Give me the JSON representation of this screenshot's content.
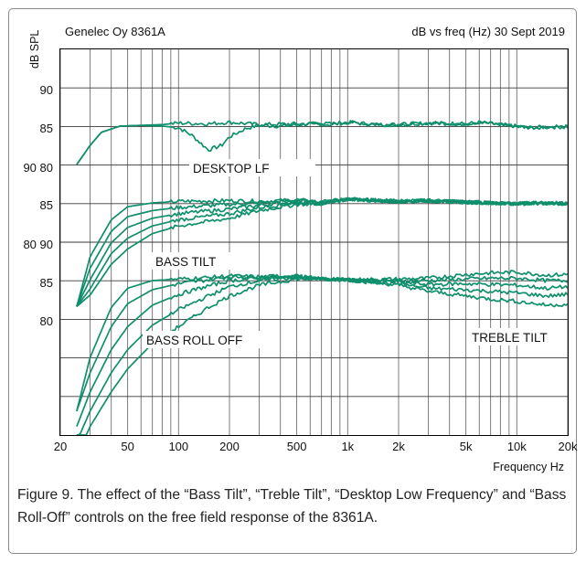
{
  "chart_data": {
    "type": "line",
    "header_left": "Genelec Oy 8361A",
    "header_right": "dB vs freq (Hz) 30 Sept 2019",
    "ylabel": "dB SPL",
    "xlabel": "Frequency Hz",
    "x_scale": "log",
    "xlim": [
      20,
      20000
    ],
    "x_ticks": [
      20,
      50,
      100,
      200,
      500,
      1000,
      2000,
      5000,
      10000,
      20000
    ],
    "x_tick_labels": [
      "20",
      "50",
      "100",
      "200",
      "500",
      "1k",
      "2k",
      "5k",
      "10k",
      "20k"
    ],
    "y_tick_labels": [
      "90",
      "85",
      "90 80",
      "85",
      "80 90",
      "85",
      "80"
    ],
    "annotations": [
      "DESKTOP LF",
      "BASS TILT",
      "BASS ROLL OFF",
      "TREBLE TILT"
    ],
    "line_color": "#0f8f6c",
    "grid": true,
    "groups": [
      {
        "label": "DESKTOP LF",
        "reference_db": 85,
        "curves": [
          {
            "points": [
              [
                25,
                80.0
              ],
              [
                30,
                82.5
              ],
              [
                35,
                84.2
              ],
              [
                45,
                85.0
              ],
              [
                60,
                85.1
              ],
              [
                80,
                85.0
              ],
              [
                100,
                84.8
              ],
              [
                120,
                83.8
              ],
              [
                150,
                81.9
              ],
              [
                180,
                82.5
              ],
              [
                200,
                83.6
              ],
              [
                250,
                84.7
              ],
              [
                300,
                85.1
              ],
              [
                400,
                85.0
              ],
              [
                600,
                85.3
              ],
              [
                800,
                85.2
              ],
              [
                1000,
                85.5
              ],
              [
                1500,
                85.2
              ],
              [
                2000,
                85.2
              ],
              [
                3000,
                85.4
              ],
              [
                5000,
                85.3
              ],
              [
                6000,
                85.5
              ],
              [
                8000,
                85.2
              ],
              [
                12000,
                84.8
              ],
              [
                15000,
                84.9
              ],
              [
                20000,
                84.9
              ]
            ]
          },
          {
            "points": [
              [
                25,
                80.0
              ],
              [
                30,
                82.5
              ],
              [
                35,
                84.2
              ],
              [
                45,
                85.0
              ],
              [
                60,
                85.1
              ],
              [
                80,
                85.2
              ],
              [
                100,
                85.4
              ],
              [
                150,
                85.3
              ],
              [
                200,
                85.5
              ],
              [
                300,
                85.2
              ],
              [
                500,
                85.3
              ],
              [
                800,
                85.3
              ],
              [
                1000,
                85.5
              ],
              [
                1500,
                85.2
              ],
              [
                2000,
                85.2
              ],
              [
                3000,
                85.4
              ],
              [
                5000,
                85.3
              ],
              [
                6000,
                85.5
              ],
              [
                8000,
                85.2
              ],
              [
                12000,
                84.8
              ],
              [
                15000,
                84.9
              ],
              [
                20000,
                84.9
              ]
            ]
          }
        ]
      },
      {
        "label": "BASS TILT",
        "reference_db": 85,
        "curves": [
          {
            "points": [
              [
                25,
                71.5
              ],
              [
                30,
                78.0
              ],
              [
                40,
                82.8
              ],
              [
                50,
                84.5
              ],
              [
                70,
                85.0
              ],
              [
                100,
                85.2
              ],
              [
                200,
                85.3
              ],
              [
                300,
                85.2
              ],
              [
                500,
                85.4
              ],
              [
                700,
                85.1
              ],
              [
                1000,
                85.5
              ],
              [
                2000,
                85.2
              ],
              [
                3000,
                85.3
              ],
              [
                5000,
                85.1
              ],
              [
                10000,
                84.9
              ],
              [
                15000,
                85.0
              ],
              [
                20000,
                84.9
              ]
            ]
          },
          {
            "points": [
              [
                25,
                71.5
              ],
              [
                30,
                76.5
              ],
              [
                40,
                81.3
              ],
              [
                50,
                83.2
              ],
              [
                70,
                84.0
              ],
              [
                100,
                84.4
              ],
              [
                200,
                84.8
              ],
              [
                300,
                85.0
              ],
              [
                500,
                85.3
              ],
              [
                700,
                85.0
              ],
              [
                1000,
                85.5
              ],
              [
                2000,
                85.2
              ],
              [
                3000,
                85.3
              ],
              [
                5000,
                85.1
              ],
              [
                10000,
                84.9
              ],
              [
                15000,
                85.0
              ],
              [
                20000,
                84.9
              ]
            ]
          },
          {
            "points": [
              [
                25,
                71.5
              ],
              [
                30,
                75.0
              ],
              [
                40,
                79.8
              ],
              [
                50,
                81.8
              ],
              [
                70,
                83.0
              ],
              [
                100,
                83.6
              ],
              [
                200,
                84.2
              ],
              [
                300,
                84.7
              ],
              [
                500,
                85.2
              ],
              [
                700,
                85.0
              ],
              [
                1000,
                85.5
              ],
              [
                2000,
                85.2
              ],
              [
                3000,
                85.3
              ],
              [
                5000,
                85.1
              ],
              [
                10000,
                84.9
              ],
              [
                15000,
                85.0
              ],
              [
                20000,
                84.9
              ]
            ]
          },
          {
            "points": [
              [
                25,
                71.5
              ],
              [
                30,
                73.8
              ],
              [
                40,
                78.4
              ],
              [
                50,
                80.4
              ],
              [
                70,
                82.0
              ],
              [
                100,
                82.8
              ],
              [
                200,
                83.6
              ],
              [
                300,
                84.4
              ],
              [
                500,
                85.0
              ],
              [
                700,
                84.9
              ],
              [
                1000,
                85.5
              ],
              [
                2000,
                85.2
              ],
              [
                3000,
                85.3
              ],
              [
                5000,
                85.1
              ],
              [
                10000,
                84.9
              ],
              [
                15000,
                85.0
              ],
              [
                20000,
                84.9
              ]
            ]
          },
          {
            "points": [
              [
                25,
                71.5
              ],
              [
                30,
                73.0
              ],
              [
                40,
                77.0
              ],
              [
                50,
                79.0
              ],
              [
                70,
                81.0
              ],
              [
                100,
                82.0
              ],
              [
                200,
                83.0
              ],
              [
                300,
                84.0
              ],
              [
                500,
                84.8
              ],
              [
                700,
                84.9
              ],
              [
                1000,
                85.5
              ],
              [
                2000,
                85.2
              ],
              [
                3000,
                85.3
              ],
              [
                5000,
                85.1
              ],
              [
                10000,
                84.9
              ],
              [
                15000,
                85.0
              ],
              [
                20000,
                84.9
              ]
            ]
          }
        ]
      },
      {
        "label": "BASS ROLL OFF / TREBLE TILT",
        "reference_db": 85,
        "curves": [
          {
            "points": [
              [
                25,
                68.0
              ],
              [
                30,
                75.0
              ],
              [
                40,
                81.5
              ],
              [
                50,
                84.0
              ],
              [
                70,
                85.0
              ],
              [
                100,
                85.2
              ],
              [
                150,
                85.4
              ],
              [
                200,
                85.6
              ],
              [
                300,
                85.5
              ],
              [
                500,
                85.6
              ],
              [
                700,
                85.2
              ],
              [
                1000,
                85.1
              ],
              [
                2000,
                85.2
              ],
              [
                3000,
                85.3
              ],
              [
                5000,
                85.8
              ],
              [
                7000,
                86.0
              ],
              [
                10000,
                86.1
              ],
              [
                15000,
                85.7
              ],
              [
                20000,
                85.8
              ]
            ]
          },
          {
            "points": [
              [
                25,
                68.0
              ],
              [
                30,
                73.0
              ],
              [
                40,
                79.0
              ],
              [
                50,
                82.0
              ],
              [
                70,
                83.8
              ],
              [
                100,
                84.6
              ],
              [
                150,
                85.1
              ],
              [
                200,
                85.5
              ],
              [
                300,
                85.5
              ],
              [
                500,
                85.6
              ],
              [
                700,
                85.2
              ],
              [
                1000,
                85.1
              ],
              [
                2000,
                85.0
              ],
              [
                3000,
                85.0
              ],
              [
                5000,
                85.2
              ],
              [
                7000,
                85.3
              ],
              [
                10000,
                85.3
              ],
              [
                15000,
                85.0
              ],
              [
                20000,
                85.0
              ]
            ]
          },
          {
            "points": [
              [
                25,
                66.0
              ],
              [
                30,
                70.5
              ],
              [
                40,
                76.0
              ],
              [
                50,
                79.0
              ],
              [
                70,
                81.8
              ],
              [
                100,
                83.2
              ],
              [
                150,
                84.3
              ],
              [
                200,
                85.0
              ],
              [
                300,
                85.3
              ],
              [
                500,
                85.5
              ],
              [
                700,
                85.2
              ],
              [
                1000,
                85.1
              ],
              [
                2000,
                84.8
              ],
              [
                3000,
                84.5
              ],
              [
                5000,
                84.6
              ],
              [
                7000,
                84.5
              ],
              [
                10000,
                84.4
              ],
              [
                15000,
                84.0
              ],
              [
                20000,
                84.2
              ]
            ]
          },
          {
            "points": [
              [
                25,
                64.0
              ],
              [
                30,
                68.0
              ],
              [
                40,
                73.0
              ],
              [
                50,
                76.0
              ],
              [
                70,
                79.2
              ],
              [
                100,
                81.2
              ],
              [
                150,
                83.0
              ],
              [
                200,
                84.2
              ],
              [
                300,
                85.0
              ],
              [
                500,
                85.4
              ],
              [
                700,
                85.2
              ],
              [
                1000,
                85.1
              ],
              [
                2000,
                84.6
              ],
              [
                3000,
                84.0
              ],
              [
                5000,
                83.8
              ],
              [
                7000,
                83.6
              ],
              [
                10000,
                83.4
              ],
              [
                15000,
                83.0
              ],
              [
                20000,
                83.2
              ]
            ]
          },
          {
            "points": [
              [
                25,
                62.0
              ],
              [
                30,
                66.0
              ],
              [
                40,
                70.5
              ],
              [
                50,
                73.5
              ],
              [
                70,
                76.8
              ],
              [
                100,
                79.0
              ],
              [
                150,
                81.5
              ],
              [
                200,
                83.0
              ],
              [
                300,
                84.4
              ],
              [
                500,
                85.2
              ],
              [
                700,
                85.2
              ],
              [
                1000,
                85.1
              ],
              [
                2000,
                84.4
              ],
              [
                3000,
                83.6
              ],
              [
                5000,
                83.0
              ],
              [
                7000,
                82.6
              ],
              [
                10000,
                82.3
              ],
              [
                15000,
                81.8
              ],
              [
                20000,
                81.9
              ]
            ]
          }
        ]
      }
    ]
  },
  "caption": "Figure 9. The effect of the “Bass Tilt”, “Treble Tilt”, “Desktop Low Frequency” and “Bass Roll-Off” controls on the free field response of the 8361A."
}
